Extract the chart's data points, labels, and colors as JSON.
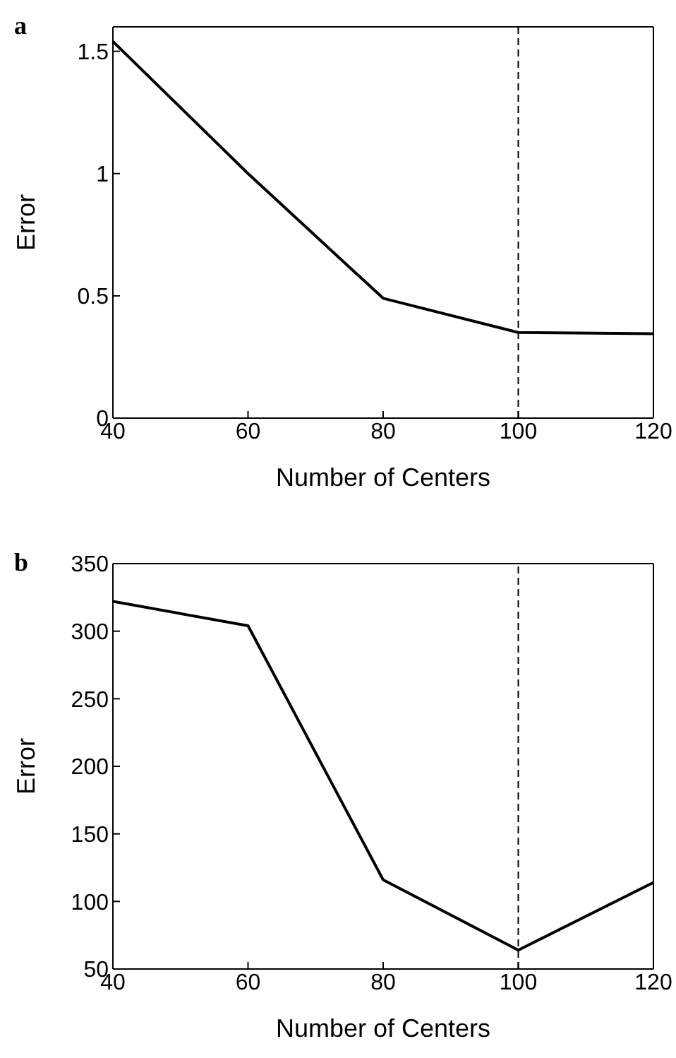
{
  "chart_data": [
    {
      "type": "line",
      "title": "a",
      "xlabel": "Number of Centers",
      "ylabel": "Error",
      "x": [
        40,
        60,
        80,
        100,
        120
      ],
      "series": [
        {
          "color": "#000000",
          "values": [
            1.54,
            1.0,
            0.49,
            0.35,
            0.345
          ]
        }
      ],
      "xlim": [
        40,
        120
      ],
      "xticks": [
        40,
        60,
        80,
        100,
        120
      ],
      "ylim": [
        0,
        1.6
      ],
      "yticks": [
        0,
        {
          "value": 0.5,
          "label": "0.5"
        },
        1,
        {
          "value": 1.5,
          "label": "1.5"
        }
      ],
      "ref_lines": [
        {
          "axis": "x",
          "value": 100,
          "color": "#000000",
          "line_style": "dashed"
        }
      ],
      "grid": false,
      "legend": false,
      "marker": "none",
      "line_style": "solid"
    },
    {
      "type": "line",
      "title": "b",
      "xlabel": "Number of Centers",
      "ylabel": "Error",
      "x": [
        40,
        60,
        80,
        100,
        120
      ],
      "series": [
        {
          "color": "#000000",
          "values": [
            322,
            304,
            116,
            64,
            114
          ]
        }
      ],
      "xlim": [
        40,
        120
      ],
      "xticks": [
        40,
        60,
        80,
        100,
        120
      ],
      "ylim": [
        50,
        350
      ],
      "yticks": [
        50,
        100,
        150,
        200,
        250,
        300,
        350
      ],
      "ref_lines": [
        {
          "axis": "x",
          "value": 100,
          "color": "#000000",
          "line_style": "dashed"
        }
      ],
      "grid": false,
      "legend": false,
      "marker": "none",
      "line_style": "solid"
    }
  ]
}
